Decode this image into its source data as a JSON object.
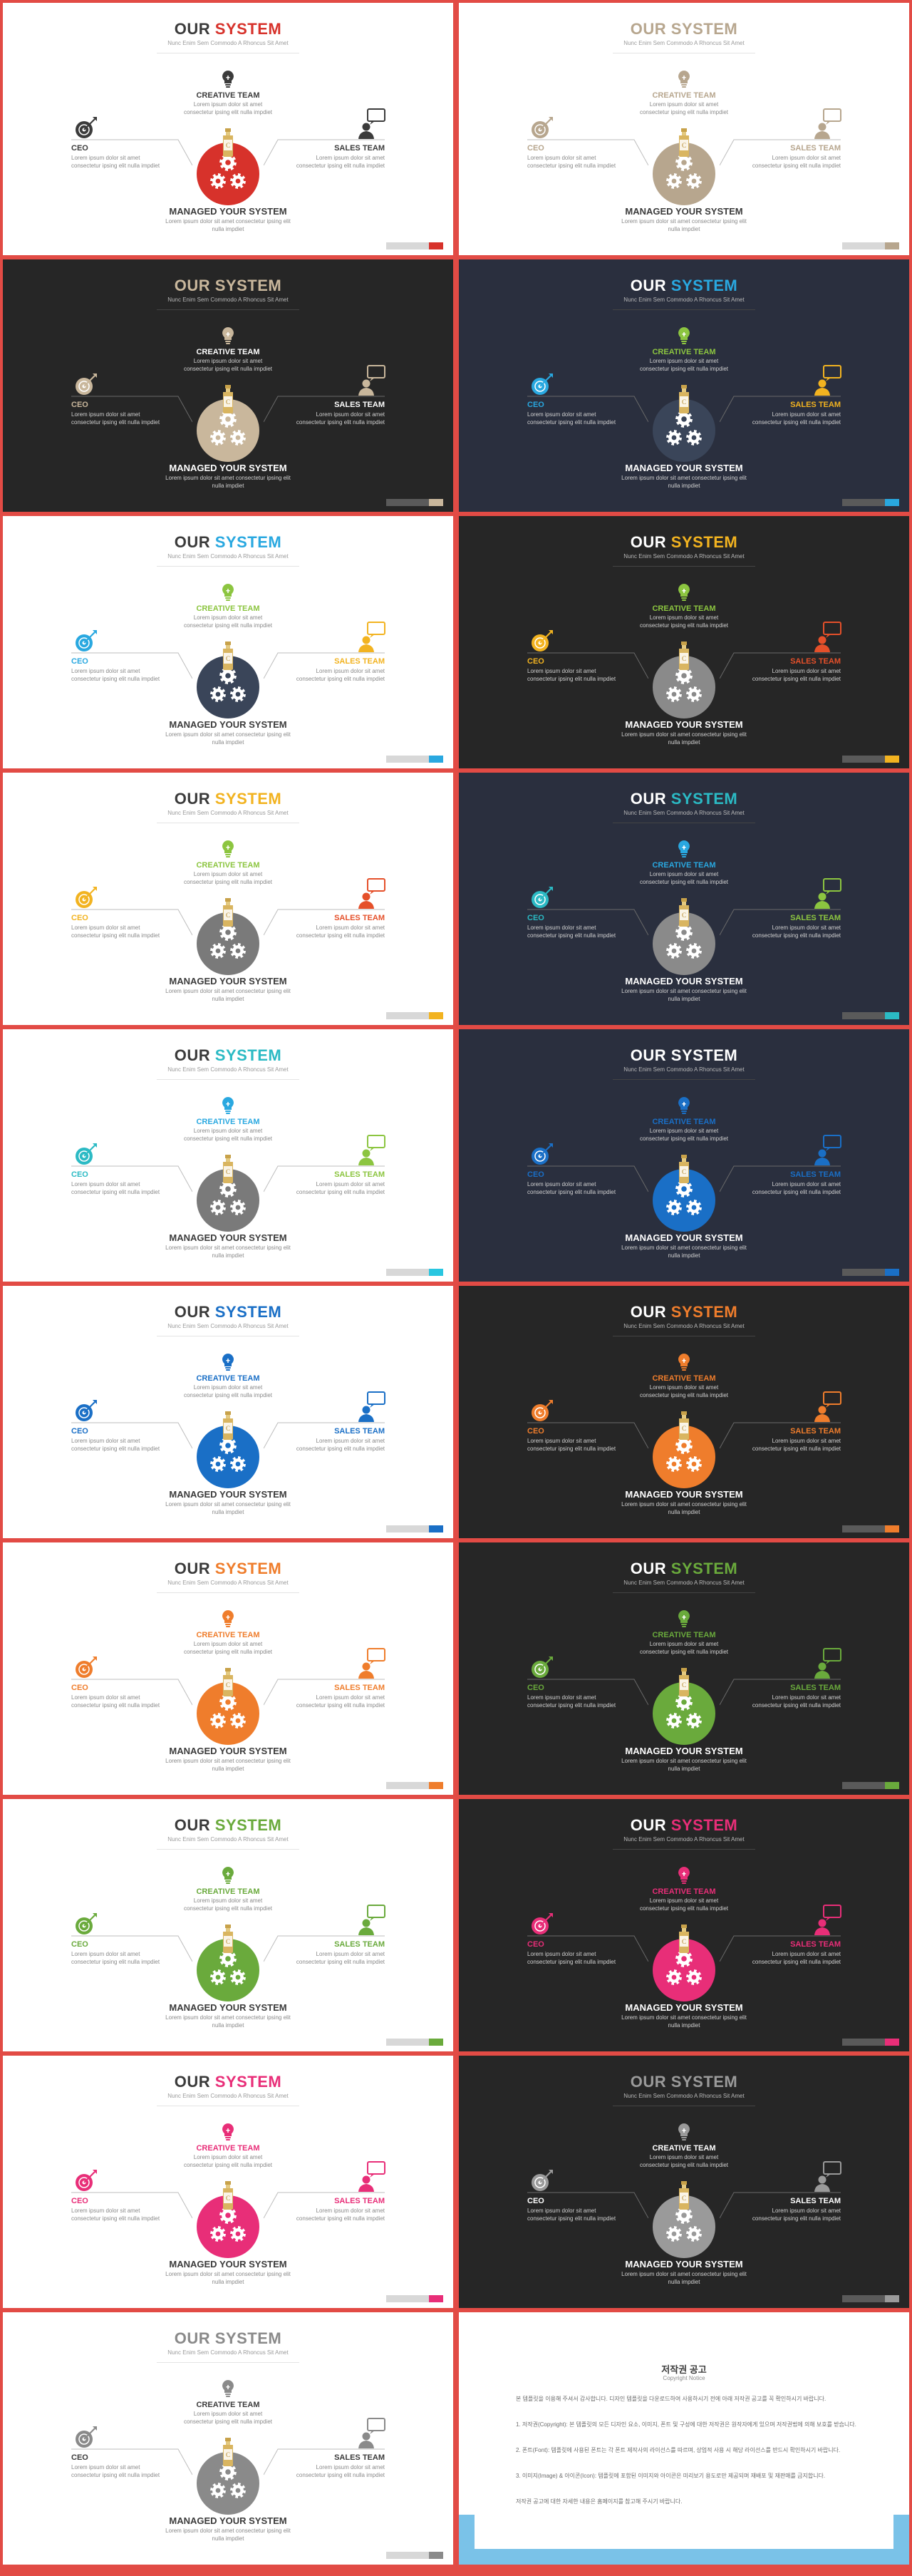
{
  "text": {
    "title_part1": "OUR",
    "title_part2": "SYSTEM",
    "subtitle": "Nunc Enim Sem Commodo A Rhoncus Sit Amet",
    "creative_label": "CREATIVE TEAM",
    "creative_body": "Lorem ipsum dolor sit amet\nconsectetur ipsing elit nulla impdiet",
    "ceo_label": "CEO",
    "ceo_body": "Lorem ipsum dolor sit amet\nconsectetur ipsing elit nulla impdiet",
    "sales_label": "SALES TEAM",
    "sales_body": "Lorem ipsum dolor sit amet\nconsectetur ipsing elit nulla impdiet",
    "managed_label": "MANAGED YOUR SYSTEM",
    "managed_body": "Lorem ipsum dolor sit amet consectetur ipsing elit\nnulla impdiet"
  },
  "slides": [
    {
      "bg": "light",
      "accent": "#d7322b",
      "circle": "#d7322b",
      "ceo": "#3b3b3b",
      "sales": "#3b3b3b",
      "creative_icon": "#3b3b3b",
      "creative_label": "#3b3b3b",
      "ceo_label": "#3b3b3b",
      "sales_label": "#3b3b3b",
      "badge": "#d7322b"
    },
    {
      "bg": "light",
      "accent": "#b7a68e",
      "circle": "#b7a68e",
      "ceo": "#b7a68e",
      "sales": "#b7a68e",
      "creative_icon": "#b7a68e",
      "creative_label": "#b7a68e",
      "ceo_label": "#b7a68e",
      "sales_label": "#b7a68e",
      "badge": "#b7a68e",
      "title_color": "#b7a68e"
    },
    {
      "bg": "dark",
      "accent": "#c9b79c",
      "circle": "#c9b79c",
      "ceo": "#c9b79c",
      "sales": "#c9b79c",
      "creative_icon": "#c9b79c",
      "creative_label": "#ffffff",
      "ceo_label": "#c9b79c",
      "sales_label": "#ffffff",
      "badge": "#c9b79c",
      "title_color": "#c9b79c"
    },
    {
      "bg": "navy",
      "accent": "#29a8e0",
      "circle": "#3a4559",
      "ceo": "#29a8e0",
      "sales": "#f2b320",
      "creative_icon": "#8cc540",
      "creative_label": "#8cc540",
      "ceo_label": "#29a8e0",
      "sales_label": "#f2b320",
      "badge": "#29a8e0"
    },
    {
      "bg": "light",
      "accent": "#29a8e0",
      "circle": "#3a4559",
      "ceo": "#29a8e0",
      "sales": "#f2b320",
      "creative_icon": "#8cc540",
      "creative_label": "#8cc540",
      "ceo_label": "#29a8e0",
      "sales_label": "#f2b320",
      "badge": "#29a8e0"
    },
    {
      "bg": "dark",
      "accent": "#f2b320",
      "circle": "#8a8a8a",
      "ceo": "#f2b320",
      "sales": "#e5502a",
      "creative_icon": "#8cc540",
      "creative_label": "#8cc540",
      "ceo_label": "#f2b320",
      "sales_label": "#e5502a",
      "badge": "#f2b320"
    },
    {
      "bg": "light",
      "accent": "#f2b320",
      "circle": "#7a7a7a",
      "ceo": "#f2b320",
      "sales": "#e5502a",
      "creative_icon": "#8cc540",
      "creative_label": "#8cc540",
      "ceo_label": "#f2b320",
      "sales_label": "#e5502a",
      "badge": "#f2b320"
    },
    {
      "bg": "navy",
      "accent": "#2bbac4",
      "circle": "#8a8a8a",
      "ceo": "#2bbac4",
      "sales": "#8cc540",
      "creative_icon": "#29a8e0",
      "creative_label": "#29a8e0",
      "ceo_label": "#2bbac4",
      "sales_label": "#8cc540",
      "badge": "#2bbac4"
    },
    {
      "bg": "light",
      "accent": "#2bbac4",
      "circle": "#7a7a7a",
      "ceo": "#2bbac4",
      "sales": "#8cc540",
      "creative_icon": "#29a8e0",
      "creative_label": "#29a8e0",
      "ceo_label": "#2bbac4",
      "sales_label": "#8cc540",
      "badge": "#29c6e0"
    },
    {
      "bg": "navy",
      "accent": "#1a6fc6",
      "circle": "#1a6fc6",
      "ceo": "#1a6fc6",
      "sales": "#1a6fc6",
      "creative_icon": "#1a6fc6",
      "creative_label": "#1a6fc6",
      "ceo_label": "#1a6fc6",
      "sales_label": "#1a6fc6",
      "badge": "#1a6fc6",
      "title_color": "#ffffff"
    },
    {
      "bg": "light",
      "accent": "#1a6fc6",
      "circle": "#1a6fc6",
      "ceo": "#1a6fc6",
      "sales": "#1a6fc6",
      "creative_icon": "#1a6fc6",
      "creative_label": "#1a6fc6",
      "ceo_label": "#1a6fc6",
      "sales_label": "#1a6fc6",
      "badge": "#1a6fc6"
    },
    {
      "bg": "dark",
      "accent": "#ef7d2c",
      "circle": "#ef7d2c",
      "ceo": "#ef7d2c",
      "sales": "#ef7d2c",
      "creative_icon": "#ef7d2c",
      "creative_label": "#ef7d2c",
      "ceo_label": "#ef7d2c",
      "sales_label": "#ef7d2c",
      "badge": "#ef7d2c"
    },
    {
      "bg": "light",
      "accent": "#ef7d2c",
      "circle": "#ef7d2c",
      "ceo": "#ef7d2c",
      "sales": "#ef7d2c",
      "creative_icon": "#ef7d2c",
      "creative_label": "#ef7d2c",
      "ceo_label": "#ef7d2c",
      "sales_label": "#ef7d2c",
      "badge": "#ef7d2c"
    },
    {
      "bg": "dark",
      "accent": "#6aaa3c",
      "circle": "#6aaa3c",
      "ceo": "#6aaa3c",
      "sales": "#6aaa3c",
      "creative_icon": "#6aaa3c",
      "creative_label": "#6aaa3c",
      "ceo_label": "#6aaa3c",
      "sales_label": "#6aaa3c",
      "badge": "#6aaa3c"
    },
    {
      "bg": "light",
      "accent": "#6aaa3c",
      "circle": "#6aaa3c",
      "ceo": "#6aaa3c",
      "sales": "#6aaa3c",
      "creative_icon": "#6aaa3c",
      "creative_label": "#6aaa3c",
      "ceo_label": "#6aaa3c",
      "sales_label": "#6aaa3c",
      "badge": "#6aaa3c"
    },
    {
      "bg": "dark",
      "accent": "#e82e78",
      "circle": "#e82e78",
      "ceo": "#e82e78",
      "sales": "#e82e78",
      "creative_icon": "#e82e78",
      "creative_label": "#e82e78",
      "ceo_label": "#e82e78",
      "sales_label": "#e82e78",
      "badge": "#e82e78"
    },
    {
      "bg": "light",
      "accent": "#e82e78",
      "circle": "#e82e78",
      "ceo": "#e82e78",
      "sales": "#e82e78",
      "creative_icon": "#e82e78",
      "creative_label": "#e82e78",
      "ceo_label": "#e82e78",
      "sales_label": "#e82e78",
      "badge": "#e82e78"
    },
    {
      "bg": "dark",
      "accent": "#9a9a9a",
      "circle": "#9a9a9a",
      "ceo": "#9a9a9a",
      "sales": "#9a9a9a",
      "creative_icon": "#9a9a9a",
      "creative_label": "#ffffff",
      "ceo_label": "#ffffff",
      "sales_label": "#ffffff",
      "badge": "#9a9a9a",
      "title_color": "#9a9a9a"
    },
    {
      "bg": "light",
      "accent": "#8a8a8a",
      "circle": "#8a8a8a",
      "ceo": "#8a8a8a",
      "sales": "#8a8a8a",
      "creative_icon": "#8a8a8a",
      "creative_label": "#3b3b3b",
      "ceo_label": "#3b3b3b",
      "sales_label": "#3b3b3b",
      "badge": "#8a8a8a",
      "title_color": "#8a8a8a"
    }
  ],
  "notice": {
    "title": "저작권 공고",
    "subtitle": "Copyright Notice",
    "paragraphs": [
      "본 템플릿을 이용해 주셔서 감사합니다. 디자인 템플릿을 다운로드하여 사용하시기 전에 아래 저작권 공고를 꼭 확인하시기 바랍니다.",
      "1. 저작권(Copyright): 본 템플릿의 모든 디자인 요소, 이미지, 폰트 및 구성에 대한 저작권은 원작자에게 있으며 저작권법에 의해 보호를 받습니다.",
      "2. 폰트(Font): 템플릿에 사용된 폰트는 각 폰트 제작사의 라이선스를 따르며, 상업적 사용 시 해당 라이선스를 반드시 확인하시기 바랍니다.",
      "3. 이미지(Image) & 아이콘(Icon): 템플릿에 포함된 이미지와 아이콘은 미리보기 용도로만 제공되며 재배포 및 재판매를 금지합니다.",
      "저작권 공고에 대한 자세한 내용은 홈페이지를 참고해 주시기 바랍니다."
    ]
  }
}
